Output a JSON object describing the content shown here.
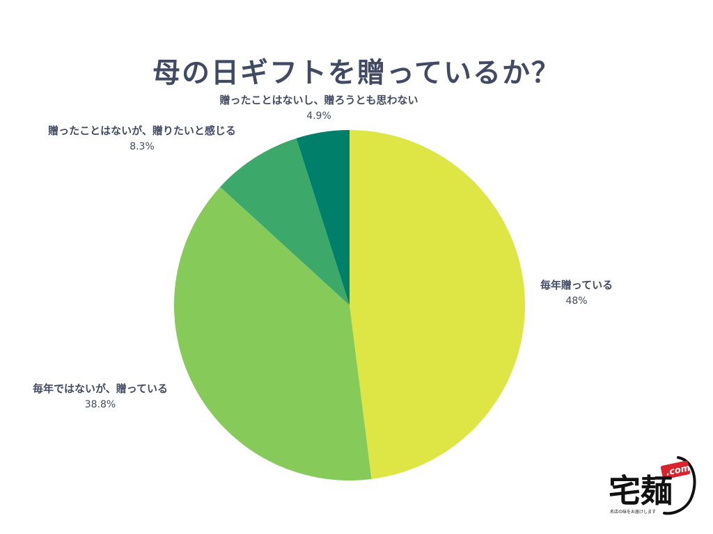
{
  "chart_data": {
    "type": "pie",
    "title": "母の日ギフトを贈っているか？",
    "slices": [
      {
        "label": "毎年贈っている",
        "value": 48,
        "display": "48%",
        "color": "#dde645"
      },
      {
        "label": "毎年ではないが、贈っている",
        "value": 38.8,
        "display": "38.8%",
        "color": "#86cb5a"
      },
      {
        "label": "贈ったことはないが、贈りたいと感じる",
        "value": 8.3,
        "display": "8.3%",
        "color": "#3ca86a"
      },
      {
        "label": "贈ったことはないし、贈ろうとも思わない",
        "value": 4.9,
        "display": "4.9%",
        "color": "#007f6a"
      }
    ],
    "start": "12 o'clock",
    "direction": "clockwise",
    "legend": "none"
  },
  "logo": {
    "main": "宅麺",
    "com": ".com",
    "tagline": "名店の味をお届けします"
  }
}
